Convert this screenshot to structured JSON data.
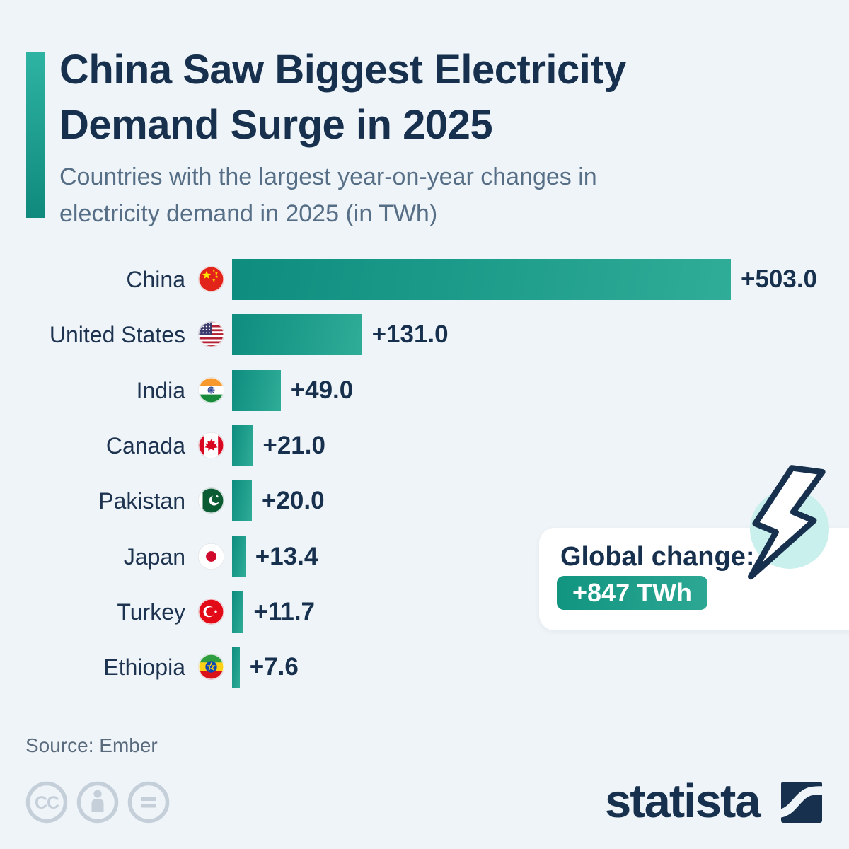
{
  "header": {
    "title_lines": [
      "China Saw Biggest Electricity",
      "Demand Surge in 2025"
    ],
    "subtitle": "Countries with the largest year-on-year changes in electricity demand in 2025 (in TWh)"
  },
  "chart_data": {
    "type": "bar",
    "orientation": "horizontal",
    "unit": "TWh",
    "categories": [
      "China",
      "United States",
      "India",
      "Canada",
      "Pakistan",
      "Japan",
      "Turkey",
      "Ethiopia"
    ],
    "values": [
      503.0,
      131.0,
      49.0,
      21.0,
      20.0,
      13.4,
      11.7,
      7.6
    ],
    "value_labels": [
      "+503.0",
      "+131.0",
      "+49.0",
      "+21.0",
      "+20.0",
      "+13.4",
      "+11.7",
      "+7.6"
    ],
    "flag_icons": [
      "flag-china",
      "flag-united-states",
      "flag-india",
      "flag-canada",
      "flag-pakistan",
      "flag-japan",
      "flag-turkey",
      "flag-ethiopia"
    ],
    "xlim": [
      0,
      520
    ],
    "grid": false,
    "legend": false,
    "bar_gradient": [
      "#0e8c7e",
      "#2fad98"
    ]
  },
  "callout": {
    "label": "Global change:",
    "value": "+847 TWh",
    "icon": "lightning-bolt-icon",
    "pill_gradient": [
      "#119580",
      "#2ca794"
    ],
    "circle_color": "#c9f0ec"
  },
  "footer": {
    "source": "Source: Ember",
    "license_icons": [
      "cc-icon",
      "attribution-person-icon",
      "equals-icon"
    ],
    "brand": "statista"
  },
  "theme": {
    "background": "#eff4f8",
    "navy": "#16304e",
    "subtitle_color": "#566e86",
    "accent_gradient": [
      "#2eb3a3",
      "#0f8a7c"
    ],
    "footer_gray": "#c5cfd9"
  }
}
